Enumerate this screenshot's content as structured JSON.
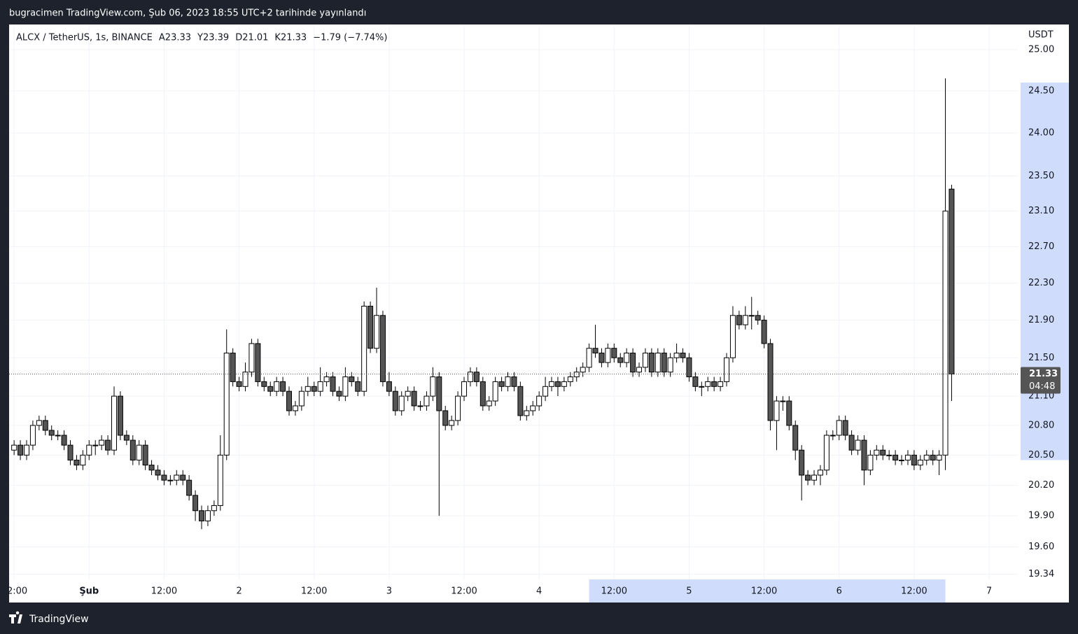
{
  "header": {
    "published": "bugracimen TradingView.com, Şub 06, 2023 18:55 UTC+2 tarihinde yayınlandı",
    "symbol": "ALCX / TetherUS, 1s, BINANCE",
    "open": "A23.33",
    "high": "Y23.39",
    "low": "D21.01",
    "close": "K21.33",
    "change": "−1.79 (−7.74%)"
  },
  "footer": {
    "brand": "TradingView"
  },
  "chart_data": {
    "type": "candlestick",
    "yaxis_unit": "USDT",
    "log_scale": true,
    "grid": true,
    "up_color": "#ffffff",
    "down_color": "#555555",
    "edge_color": "#000000",
    "last_price_label": "21.33",
    "countdown": "04:48",
    "x_highlight": [
      80,
      137
    ],
    "y_highlight": [
      20.45,
      24.6
    ],
    "xlim": [
      -12.8,
      148.7
    ],
    "ylim": [
      19.29,
      25.3
    ],
    "xticks": [
      {
        "value": -12,
        "label": "2:00"
      },
      {
        "value": 0,
        "label": "Şub"
      },
      {
        "value": 12,
        "label": "12:00"
      },
      {
        "value": 24,
        "label": "2"
      },
      {
        "value": 36,
        "label": "12:00"
      },
      {
        "value": 48,
        "label": "3"
      },
      {
        "value": 60,
        "label": "12:00"
      },
      {
        "value": 72,
        "label": "4"
      },
      {
        "value": 84,
        "label": "12:00"
      },
      {
        "value": 96,
        "label": "5"
      },
      {
        "value": 108,
        "label": "12:00"
      },
      {
        "value": 120,
        "label": "6"
      },
      {
        "value": 132,
        "label": "12:00"
      },
      {
        "value": 144,
        "label": "7"
      }
    ],
    "yticks": [
      {
        "value": 25,
        "label": "25.00"
      },
      {
        "value": 24.5,
        "label": "24.50"
      },
      {
        "value": 24,
        "label": "24.00"
      },
      {
        "value": 23.5,
        "label": "23.50"
      },
      {
        "value": 23.1,
        "label": "23.10"
      },
      {
        "value": 22.7,
        "label": "22.70"
      },
      {
        "value": 22.3,
        "label": "22.30"
      },
      {
        "value": 21.9,
        "label": "21.90"
      },
      {
        "value": 21.5,
        "label": "21.50"
      },
      {
        "value": 21.1,
        "label": "21.10"
      },
      {
        "value": 20.8,
        "label": "20.80"
      },
      {
        "value": 20.5,
        "label": "20.50"
      },
      {
        "value": 20.2,
        "label": "20.20"
      },
      {
        "value": 19.9,
        "label": "19.90"
      },
      {
        "value": 19.6,
        "label": "19.60"
      },
      19.34
    ],
    "x": [
      -12,
      -11,
      -10,
      -9,
      -8,
      -7,
      -6,
      -5,
      -4,
      -3,
      -2,
      -1,
      0,
      1,
      2,
      3,
      4,
      5,
      6,
      7,
      8,
      9,
      10,
      11,
      12,
      13,
      14,
      15,
      16,
      17,
      18,
      19,
      20,
      21,
      22,
      23,
      24,
      25,
      26,
      27,
      28,
      29,
      30,
      31,
      32,
      33,
      34,
      35,
      36,
      37,
      38,
      39,
      40,
      41,
      42,
      43,
      44,
      45,
      46,
      47,
      48,
      49,
      50,
      51,
      52,
      53,
      54,
      55,
      56,
      57,
      58,
      59,
      60,
      61,
      62,
      63,
      64,
      65,
      66,
      67,
      68,
      69,
      70,
      71,
      72,
      73,
      74,
      75,
      76,
      77,
      78,
      79,
      80,
      81,
      82,
      83,
      84,
      85,
      86,
      87,
      88,
      89,
      90,
      91,
      92,
      93,
      94,
      95,
      96,
      97,
      98,
      99,
      100,
      101,
      102,
      103,
      104,
      105,
      106,
      107,
      108,
      109,
      110,
      111,
      112,
      113,
      114,
      115,
      116,
      117,
      118,
      119,
      120,
      121,
      122,
      123,
      124,
      125,
      126,
      127,
      128,
      129,
      130,
      131,
      132,
      133,
      134,
      135,
      136,
      137,
      138
    ],
    "candles": [
      [
        20.55,
        20.65,
        20.5,
        20.6
      ],
      [
        20.6,
        20.65,
        20.45,
        20.5
      ],
      [
        20.5,
        20.65,
        20.45,
        20.6
      ],
      [
        20.6,
        20.85,
        20.55,
        20.8
      ],
      [
        20.8,
        20.9,
        20.75,
        20.85
      ],
      [
        20.85,
        20.9,
        20.7,
        20.75
      ],
      [
        20.75,
        20.8,
        20.65,
        20.7
      ],
      [
        20.7,
        20.75,
        20.65,
        20.7
      ],
      [
        20.7,
        20.75,
        20.55,
        20.6
      ],
      [
        20.6,
        20.65,
        20.4,
        20.45
      ],
      [
        20.45,
        20.5,
        20.35,
        20.4
      ],
      [
        20.4,
        20.55,
        20.35,
        20.5
      ],
      [
        20.5,
        20.65,
        20.45,
        20.6
      ],
      [
        20.6,
        20.65,
        20.5,
        20.6
      ],
      [
        20.6,
        20.7,
        20.55,
        20.65
      ],
      [
        20.65,
        20.7,
        20.5,
        20.55
      ],
      [
        20.55,
        21.2,
        20.5,
        21.1
      ],
      [
        21.1,
        21.15,
        20.65,
        20.7
      ],
      [
        20.7,
        20.75,
        20.6,
        20.65
      ],
      [
        20.65,
        20.7,
        20.4,
        20.45
      ],
      [
        20.45,
        20.65,
        20.4,
        20.6
      ],
      [
        20.6,
        20.65,
        20.35,
        20.4
      ],
      [
        20.4,
        20.45,
        20.3,
        20.35
      ],
      [
        20.35,
        20.4,
        20.25,
        20.3
      ],
      [
        20.3,
        20.35,
        20.2,
        20.25
      ],
      [
        20.25,
        20.3,
        20.2,
        20.25
      ],
      [
        20.25,
        20.35,
        20.2,
        20.3
      ],
      [
        20.3,
        20.35,
        20.2,
        20.25
      ],
      [
        20.25,
        20.3,
        20.05,
        20.1
      ],
      [
        20.1,
        20.15,
        19.85,
        19.95
      ],
      [
        19.95,
        20.0,
        19.77,
        19.85
      ],
      [
        19.85,
        20.0,
        19.8,
        19.95
      ],
      [
        19.95,
        20.05,
        19.9,
        20.0
      ],
      [
        20.0,
        20.7,
        19.95,
        20.5
      ],
      [
        20.5,
        21.8,
        20.45,
        21.55
      ],
      [
        21.55,
        21.6,
        21.2,
        21.25
      ],
      [
        21.25,
        21.3,
        21.15,
        21.2
      ],
      [
        21.2,
        21.45,
        21.15,
        21.35
      ],
      [
        21.35,
        21.7,
        21.3,
        21.65
      ],
      [
        21.65,
        21.7,
        21.2,
        21.25
      ],
      [
        21.25,
        21.3,
        21.15,
        21.2
      ],
      [
        21.2,
        21.25,
        21.1,
        21.15
      ],
      [
        21.15,
        21.3,
        21.1,
        21.25
      ],
      [
        21.25,
        21.3,
        21.1,
        21.15
      ],
      [
        21.15,
        21.2,
        20.9,
        20.95
      ],
      [
        20.95,
        21.05,
        20.9,
        21.0
      ],
      [
        21.0,
        21.2,
        20.95,
        21.15
      ],
      [
        21.15,
        21.3,
        21.1,
        21.2
      ],
      [
        21.2,
        21.25,
        21.1,
        21.15
      ],
      [
        21.15,
        21.4,
        21.1,
        21.25
      ],
      [
        21.25,
        21.35,
        21.2,
        21.3
      ],
      [
        21.3,
        21.35,
        21.1,
        21.15
      ],
      [
        21.15,
        21.2,
        21.05,
        21.1
      ],
      [
        21.1,
        21.4,
        21.05,
        21.3
      ],
      [
        21.3,
        21.35,
        21.2,
        21.25
      ],
      [
        21.25,
        21.3,
        21.1,
        21.15
      ],
      [
        21.15,
        22.1,
        21.1,
        22.05
      ],
      [
        22.05,
        22.1,
        21.55,
        21.6
      ],
      [
        21.6,
        22.25,
        21.55,
        21.95
      ],
      [
        21.95,
        22.0,
        21.2,
        21.25
      ],
      [
        21.25,
        21.35,
        21.1,
        21.15
      ],
      [
        21.15,
        21.2,
        20.9,
        20.95
      ],
      [
        20.95,
        21.15,
        20.9,
        21.1
      ],
      [
        21.1,
        21.2,
        21.05,
        21.15
      ],
      [
        21.15,
        21.2,
        20.95,
        21.0
      ],
      [
        21.0,
        21.05,
        20.95,
        21.0
      ],
      [
        21.0,
        21.15,
        20.95,
        21.1
      ],
      [
        21.1,
        21.4,
        21.05,
        21.3
      ],
      [
        21.3,
        21.35,
        19.9,
        20.95
      ],
      [
        20.95,
        21.0,
        20.75,
        20.8
      ],
      [
        20.8,
        20.9,
        20.75,
        20.85
      ],
      [
        20.85,
        21.15,
        20.8,
        21.1
      ],
      [
        21.1,
        21.3,
        21.05,
        21.25
      ],
      [
        21.25,
        21.4,
        21.2,
        21.35
      ],
      [
        21.35,
        21.4,
        21.2,
        21.25
      ],
      [
        21.25,
        21.3,
        20.95,
        21.0
      ],
      [
        21.0,
        21.1,
        20.95,
        21.05
      ],
      [
        21.05,
        21.3,
        21.0,
        21.25
      ],
      [
        21.25,
        21.3,
        21.15,
        21.2
      ],
      [
        21.2,
        21.35,
        21.15,
        21.3
      ],
      [
        21.3,
        21.35,
        21.15,
        21.2
      ],
      [
        21.2,
        21.25,
        20.85,
        20.9
      ],
      [
        20.9,
        21.0,
        20.85,
        20.95
      ],
      [
        20.95,
        21.05,
        20.9,
        21.0
      ],
      [
        21.0,
        21.15,
        20.95,
        21.1
      ],
      [
        21.1,
        21.3,
        21.05,
        21.2
      ],
      [
        21.2,
        21.3,
        21.15,
        21.25
      ],
      [
        21.25,
        21.3,
        21.1,
        21.2
      ],
      [
        21.2,
        21.3,
        21.15,
        21.25
      ],
      [
        21.25,
        21.35,
        21.2,
        21.3
      ],
      [
        21.3,
        21.4,
        21.25,
        21.35
      ],
      [
        21.35,
        21.45,
        21.3,
        21.4
      ],
      [
        21.4,
        21.65,
        21.35,
        21.6
      ],
      [
        21.6,
        21.85,
        21.5,
        21.55
      ],
      [
        21.55,
        21.6,
        21.4,
        21.45
      ],
      [
        21.45,
        21.65,
        21.4,
        21.6
      ],
      [
        21.6,
        21.65,
        21.45,
        21.5
      ],
      [
        21.5,
        21.55,
        21.4,
        21.45
      ],
      [
        21.45,
        21.6,
        21.4,
        21.55
      ],
      [
        21.55,
        21.6,
        21.3,
        21.35
      ],
      [
        21.35,
        21.45,
        21.3,
        21.4
      ],
      [
        21.4,
        21.6,
        21.35,
        21.55
      ],
      [
        21.55,
        21.6,
        21.3,
        21.35
      ],
      [
        21.35,
        21.6,
        21.3,
        21.55
      ],
      [
        21.55,
        21.6,
        21.3,
        21.35
      ],
      [
        21.35,
        21.55,
        21.3,
        21.5
      ],
      [
        21.5,
        21.65,
        21.45,
        21.55
      ],
      [
        21.55,
        21.6,
        21.45,
        21.5
      ],
      [
        21.5,
        21.55,
        21.25,
        21.3
      ],
      [
        21.3,
        21.35,
        21.15,
        21.2
      ],
      [
        21.2,
        21.25,
        21.1,
        21.2
      ],
      [
        21.2,
        21.3,
        21.15,
        21.25
      ],
      [
        21.25,
        21.3,
        21.15,
        21.2
      ],
      [
        21.2,
        21.3,
        21.15,
        21.25
      ],
      [
        21.25,
        21.55,
        21.2,
        21.5
      ],
      [
        21.5,
        22.05,
        21.45,
        21.95
      ],
      [
        21.95,
        22.0,
        21.8,
        21.85
      ],
      [
        21.85,
        22.05,
        21.8,
        21.95
      ],
      [
        21.95,
        22.15,
        21.8,
        21.95
      ],
      [
        21.95,
        22.0,
        21.85,
        21.9
      ],
      [
        21.9,
        21.95,
        21.6,
        21.65
      ],
      [
        21.65,
        21.7,
        20.75,
        20.85
      ],
      [
        20.85,
        21.1,
        20.55,
        21.05
      ],
      [
        21.05,
        21.1,
        20.95,
        21.05
      ],
      [
        21.05,
        21.1,
        20.75,
        20.8
      ],
      [
        20.8,
        20.85,
        20.45,
        20.55
      ],
      [
        20.55,
        20.6,
        20.05,
        20.3
      ],
      [
        20.3,
        20.35,
        20.2,
        20.25
      ],
      [
        20.25,
        20.35,
        20.2,
        20.3
      ],
      [
        20.3,
        20.4,
        20.2,
        20.35
      ],
      [
        20.35,
        20.75,
        20.3,
        20.7
      ],
      [
        20.7,
        20.75,
        20.65,
        20.7
      ],
      [
        20.7,
        20.9,
        20.65,
        20.85
      ],
      [
        20.85,
        20.9,
        20.65,
        20.7
      ],
      [
        20.7,
        20.75,
        20.5,
        20.55
      ],
      [
        20.55,
        20.7,
        20.5,
        20.65
      ],
      [
        20.65,
        20.7,
        20.2,
        20.35
      ],
      [
        20.35,
        20.55,
        20.3,
        20.5
      ],
      [
        20.5,
        20.6,
        20.45,
        20.55
      ],
      [
        20.55,
        20.6,
        20.45,
        20.5
      ],
      [
        20.5,
        20.55,
        20.45,
        20.5
      ],
      [
        20.5,
        20.55,
        20.4,
        20.45
      ],
      [
        20.45,
        20.5,
        20.4,
        20.45
      ],
      [
        20.45,
        20.55,
        20.4,
        20.5
      ],
      [
        20.5,
        20.55,
        20.35,
        20.4
      ],
      [
        20.4,
        20.5,
        20.35,
        20.45
      ],
      [
        20.45,
        20.55,
        20.4,
        20.5
      ],
      [
        20.5,
        20.55,
        20.4,
        20.45
      ],
      [
        20.45,
        20.55,
        20.3,
        20.5
      ],
      [
        20.5,
        24.65,
        20.35,
        23.1
      ],
      [
        23.35,
        23.4,
        21.05,
        21.33
      ]
    ]
  }
}
